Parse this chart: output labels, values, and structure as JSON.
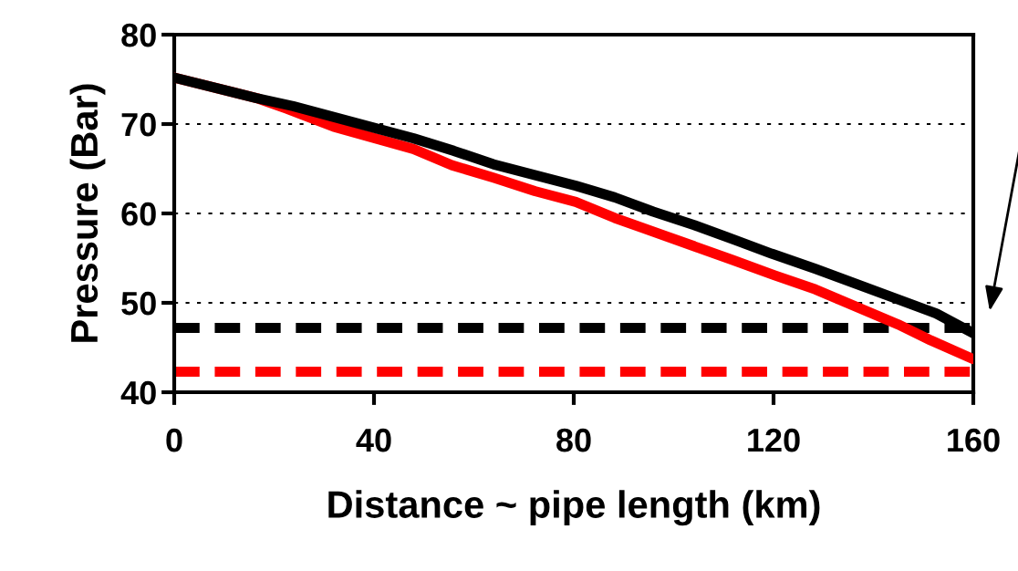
{
  "chart_data": {
    "type": "line",
    "xlabel": "Distance ~ pipe length (km)",
    "ylabel": "Pressure (Bar)",
    "xlim": [
      0,
      160
    ],
    "ylim": [
      40,
      80
    ],
    "xticks": [
      0,
      40,
      80,
      120,
      160
    ],
    "yticks": [
      40,
      50,
      60,
      70,
      80
    ],
    "grid": "y",
    "line_style": "solid",
    "marker": "none",
    "series": [
      {
        "color": "#ff0000",
        "x": [
          0,
          16.5,
          22.6,
          31.9,
          47.9,
          55.6,
          63.9,
          72.2,
          80.4,
          88.2,
          111.8,
          120.1,
          128.4,
          144.9,
          151.5,
          160
        ],
        "values": [
          75.2,
          72.9,
          71.7,
          69.7,
          67.2,
          65.4,
          64.0,
          62.5,
          61.3,
          59.5,
          54.8,
          53.1,
          51.5,
          47.6,
          45.8,
          43.7
        ]
      },
      {
        "color": "#000000",
        "x": [
          0,
          16.5,
          23.8,
          47.9,
          56,
          63.9,
          80.4,
          88.2,
          95.9,
          104.1,
          112.4,
          119.6,
          128.4,
          144.4,
          152.6,
          160
        ],
        "values": [
          75.2,
          72.9,
          72.0,
          68.4,
          67.0,
          65.5,
          63.1,
          61.8,
          60.2,
          58.7,
          57.0,
          55.5,
          53.8,
          50.5,
          48.8,
          46.6
        ]
      }
    ],
    "ref_lines": [
      {
        "axis": "y",
        "value": 47.2,
        "color": "#000000",
        "line_style": "dashed"
      },
      {
        "axis": "y",
        "value": 42.3,
        "color": "#ff0000",
        "line_style": "dashed"
      }
    ]
  }
}
